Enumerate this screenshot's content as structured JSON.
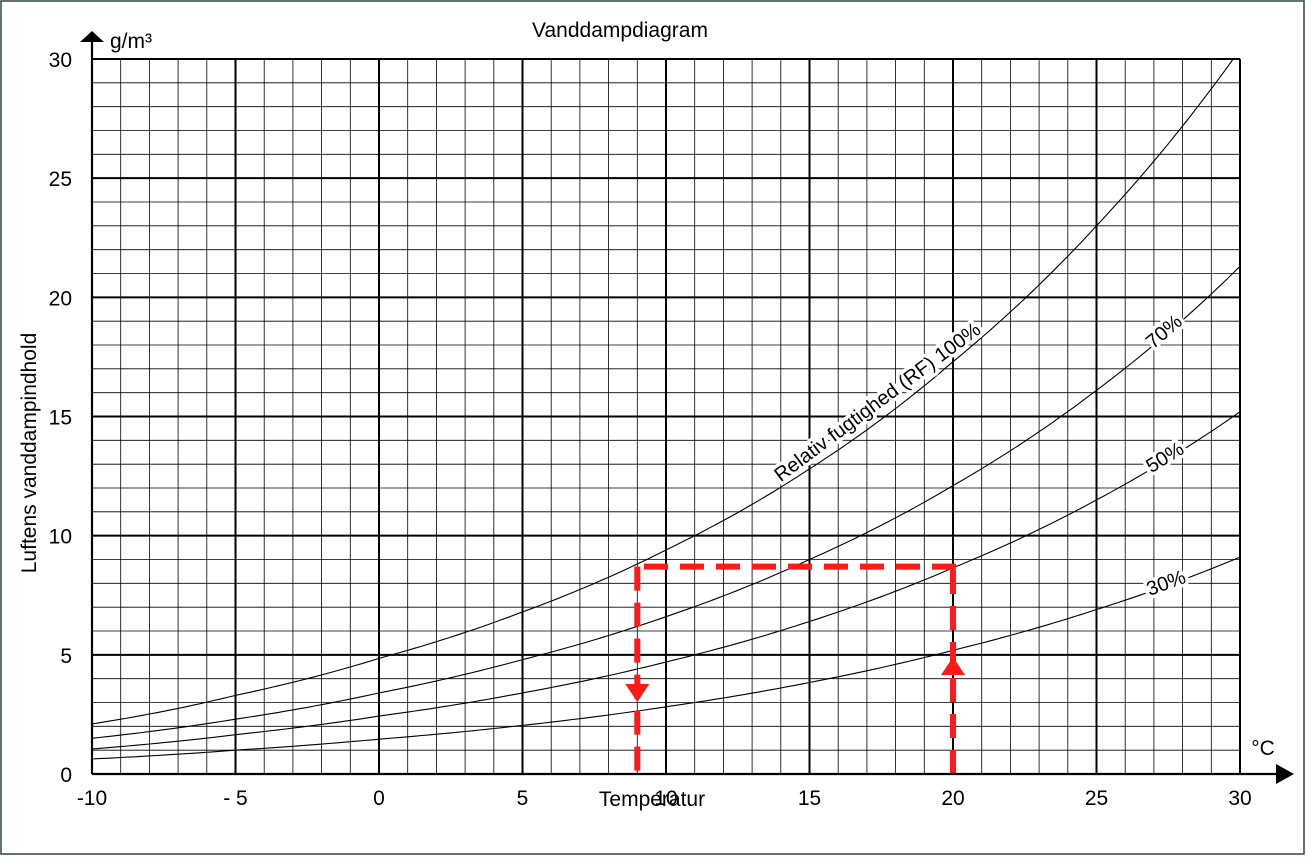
{
  "chart_data": {
    "type": "line",
    "title": "Vanddampdiagram",
    "xlabel": "Temperatur",
    "ylabel": "Luftens vanddampindhold",
    "x_unit": "°C",
    "y_unit": "g/m³",
    "xlim": [
      -10,
      30
    ],
    "ylim": [
      0,
      30
    ],
    "grid": true,
    "x_ticks": [
      {
        "value": -10,
        "label": "-10"
      },
      {
        "value": -5,
        "label": "- 5"
      },
      {
        "value": 0,
        "label": "0"
      },
      {
        "value": 5,
        "label": "5"
      },
      {
        "value": 10,
        "label": "10"
      },
      {
        "value": 15,
        "label": "15"
      },
      {
        "value": 20,
        "label": "20"
      },
      {
        "value": 25,
        "label": "25"
      },
      {
        "value": 30,
        "label": "30"
      }
    ],
    "y_ticks": [
      {
        "value": 0,
        "label": "0"
      },
      {
        "value": 5,
        "label": "5"
      },
      {
        "value": 10,
        "label": "10"
      },
      {
        "value": 15,
        "label": "15"
      },
      {
        "value": 20,
        "label": "20"
      },
      {
        "value": 25,
        "label": "25"
      },
      {
        "value": 30,
        "label": "30"
      }
    ],
    "x": [
      -10,
      -5,
      0,
      5,
      10,
      15,
      20,
      25,
      30
    ],
    "series": [
      {
        "name": "Relativ fugtighed (RF) 100%",
        "label_x": 17.5,
        "values": [
          2.1,
          3.3,
          4.85,
          6.8,
          9.4,
          12.8,
          17.3,
          23.0,
          30.4
        ]
      },
      {
        "name": "70%",
        "label_x": 27.5,
        "values": [
          1.5,
          2.3,
          3.4,
          4.8,
          6.6,
          9.0,
          12.1,
          16.1,
          21.3
        ]
      },
      {
        "name": "50%",
        "label_x": 27.5,
        "values": [
          1.05,
          1.65,
          2.43,
          3.4,
          4.7,
          6.4,
          8.65,
          11.5,
          15.2
        ]
      },
      {
        "name": "30%",
        "label_x": 27.5,
        "values": [
          0.63,
          1.0,
          1.46,
          2.04,
          2.82,
          3.84,
          5.19,
          6.9,
          9.1
        ]
      }
    ],
    "annotation": {
      "color": "#ff1a1a",
      "level_y": 8.7,
      "from_x": 20,
      "to_x": 9
    },
    "colors": {
      "axis": "#000000",
      "grid": "#000000",
      "curve": "#000000",
      "frame": "#2e4a3a"
    }
  }
}
